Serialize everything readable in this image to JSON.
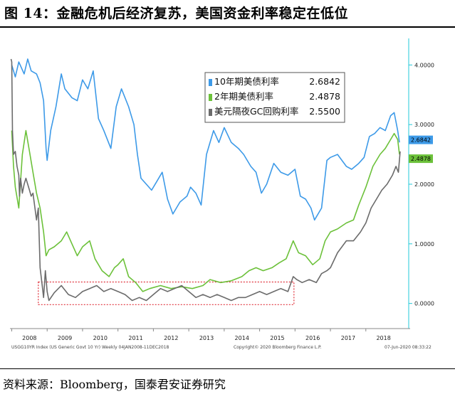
{
  "header": {
    "title": "图 14：金融危机后经济复苏，美国资金利率稳定在低位"
  },
  "footer": {
    "source": "资料来源：Bloomberg，国泰君安证券研究"
  },
  "chart_data": {
    "type": "line",
    "x_tick_labels": [
      "2008",
      "2009",
      "2010",
      "2011",
      "2012",
      "2013",
      "2014",
      "2015",
      "2016",
      "2017",
      "2018"
    ],
    "y_tick_labels": [
      "0.0000",
      "1.0000",
      "2.0000",
      "3.0000",
      "4.0000"
    ],
    "ylim": [
      -0.35,
      4.35
    ],
    "grid": false,
    "legend_position": "top-right",
    "end_labels": [
      "2.6842",
      "2.4878"
    ],
    "footer_left": "USGG10YR Index (US Generic Govt 10 Yr)  Weekly 04JAN2008-11DEC2018",
    "footer_mid": "Copyright© 2020 Bloomberg Finance L.P.",
    "footer_right": "07-Jun-2020 08:33:22",
    "colors": {
      "us10y": "#3d9ae8",
      "us2y": "#6cc13a",
      "gc": "#6b6b6b",
      "highlight": "#e0313b",
      "axis": "#22c8d8"
    },
    "series": [
      {
        "name": "10年期美债利率",
        "value_label": "2.6842",
        "points": [
          [
            2008.0,
            4.0
          ],
          [
            2008.1,
            3.8
          ],
          [
            2008.2,
            4.05
          ],
          [
            2008.35,
            3.85
          ],
          [
            2008.45,
            4.1
          ],
          [
            2008.55,
            3.9
          ],
          [
            2008.7,
            3.85
          ],
          [
            2008.8,
            3.7
          ],
          [
            2008.9,
            3.4
          ],
          [
            2008.97,
            2.6
          ],
          [
            2009.0,
            2.4
          ],
          [
            2009.1,
            2.9
          ],
          [
            2009.25,
            3.3
          ],
          [
            2009.4,
            3.85
          ],
          [
            2009.5,
            3.6
          ],
          [
            2009.7,
            3.45
          ],
          [
            2009.85,
            3.4
          ],
          [
            2010.0,
            3.75
          ],
          [
            2010.15,
            3.6
          ],
          [
            2010.3,
            3.9
          ],
          [
            2010.45,
            3.1
          ],
          [
            2010.6,
            2.9
          ],
          [
            2010.8,
            2.6
          ],
          [
            2010.95,
            3.3
          ],
          [
            2011.1,
            3.6
          ],
          [
            2011.3,
            3.3
          ],
          [
            2011.45,
            3.0
          ],
          [
            2011.55,
            2.5
          ],
          [
            2011.65,
            2.1
          ],
          [
            2011.8,
            2.0
          ],
          [
            2011.95,
            1.9
          ],
          [
            2012.1,
            2.05
          ],
          [
            2012.25,
            2.2
          ],
          [
            2012.4,
            1.75
          ],
          [
            2012.55,
            1.5
          ],
          [
            2012.75,
            1.7
          ],
          [
            2012.95,
            1.8
          ],
          [
            2013.05,
            1.95
          ],
          [
            2013.2,
            1.85
          ],
          [
            2013.35,
            1.65
          ],
          [
            2013.5,
            2.5
          ],
          [
            2013.7,
            2.9
          ],
          [
            2013.85,
            2.7
          ],
          [
            2014.0,
            2.95
          ],
          [
            2014.2,
            2.7
          ],
          [
            2014.4,
            2.6
          ],
          [
            2014.55,
            2.5
          ],
          [
            2014.75,
            2.3
          ],
          [
            2014.9,
            2.2
          ],
          [
            2015.05,
            1.85
          ],
          [
            2015.2,
            2.0
          ],
          [
            2015.4,
            2.35
          ],
          [
            2015.6,
            2.2
          ],
          [
            2015.8,
            2.15
          ],
          [
            2016.0,
            2.25
          ],
          [
            2016.15,
            1.8
          ],
          [
            2016.3,
            1.75
          ],
          [
            2016.45,
            1.6
          ],
          [
            2016.55,
            1.4
          ],
          [
            2016.75,
            1.6
          ],
          [
            2016.9,
            2.4
          ],
          [
            2017.0,
            2.45
          ],
          [
            2017.2,
            2.5
          ],
          [
            2017.45,
            2.3
          ],
          [
            2017.6,
            2.25
          ],
          [
            2017.8,
            2.35
          ],
          [
            2017.95,
            2.45
          ],
          [
            2018.1,
            2.8
          ],
          [
            2018.25,
            2.85
          ],
          [
            2018.4,
            2.95
          ],
          [
            2018.55,
            2.9
          ],
          [
            2018.7,
            3.15
          ],
          [
            2018.8,
            3.2
          ],
          [
            2018.9,
            2.9
          ],
          [
            2018.95,
            2.7
          ]
        ]
      },
      {
        "name": "2年期美债利率",
        "value_label": "2.4878",
        "points": [
          [
            2008.0,
            2.9
          ],
          [
            2008.05,
            2.3
          ],
          [
            2008.1,
            1.95
          ],
          [
            2008.2,
            1.6
          ],
          [
            2008.3,
            2.5
          ],
          [
            2008.4,
            2.9
          ],
          [
            2008.5,
            2.55
          ],
          [
            2008.6,
            2.2
          ],
          [
            2008.7,
            1.85
          ],
          [
            2008.8,
            1.6
          ],
          [
            2008.9,
            1.2
          ],
          [
            2008.97,
            0.8
          ],
          [
            2009.05,
            0.9
          ],
          [
            2009.2,
            0.95
          ],
          [
            2009.4,
            1.05
          ],
          [
            2009.55,
            1.2
          ],
          [
            2009.7,
            1.0
          ],
          [
            2009.85,
            0.8
          ],
          [
            2010.0,
            0.95
          ],
          [
            2010.2,
            1.05
          ],
          [
            2010.35,
            0.75
          ],
          [
            2010.55,
            0.55
          ],
          [
            2010.75,
            0.45
          ],
          [
            2010.9,
            0.6
          ],
          [
            2011.0,
            0.65
          ],
          [
            2011.15,
            0.75
          ],
          [
            2011.3,
            0.45
          ],
          [
            2011.5,
            0.35
          ],
          [
            2011.7,
            0.2
          ],
          [
            2011.9,
            0.25
          ],
          [
            2012.2,
            0.3
          ],
          [
            2012.5,
            0.25
          ],
          [
            2012.8,
            0.28
          ],
          [
            2013.1,
            0.25
          ],
          [
            2013.4,
            0.3
          ],
          [
            2013.6,
            0.4
          ],
          [
            2013.9,
            0.35
          ],
          [
            2014.2,
            0.38
          ],
          [
            2014.5,
            0.45
          ],
          [
            2014.7,
            0.55
          ],
          [
            2014.9,
            0.6
          ],
          [
            2015.1,
            0.55
          ],
          [
            2015.35,
            0.6
          ],
          [
            2015.55,
            0.68
          ],
          [
            2015.75,
            0.75
          ],
          [
            2015.95,
            1.05
          ],
          [
            2016.1,
            0.85
          ],
          [
            2016.3,
            0.8
          ],
          [
            2016.5,
            0.65
          ],
          [
            2016.7,
            0.75
          ],
          [
            2016.85,
            1.05
          ],
          [
            2017.0,
            1.2
          ],
          [
            2017.2,
            1.25
          ],
          [
            2017.45,
            1.35
          ],
          [
            2017.65,
            1.4
          ],
          [
            2017.8,
            1.65
          ],
          [
            2018.0,
            1.95
          ],
          [
            2018.2,
            2.3
          ],
          [
            2018.4,
            2.5
          ],
          [
            2018.55,
            2.6
          ],
          [
            2018.7,
            2.75
          ],
          [
            2018.8,
            2.85
          ],
          [
            2018.9,
            2.75
          ],
          [
            2018.95,
            2.5
          ]
        ]
      },
      {
        "name": "美元隔夜GC回购利率",
        "value_label": "2.5500",
        "points": [
          [
            2007.98,
            4.1
          ],
          [
            2008.0,
            4.05
          ],
          [
            2008.02,
            2.9
          ],
          [
            2008.05,
            2.5
          ],
          [
            2008.1,
            2.55
          ],
          [
            2008.15,
            2.3
          ],
          [
            2008.2,
            2.15
          ],
          [
            2008.22,
            1.8
          ],
          [
            2008.25,
            2.1
          ],
          [
            2008.3,
            1.85
          ],
          [
            2008.35,
            2.0
          ],
          [
            2008.4,
            2.1
          ],
          [
            2008.45,
            2.0
          ],
          [
            2008.5,
            1.9
          ],
          [
            2008.55,
            1.8
          ],
          [
            2008.6,
            1.85
          ],
          [
            2008.7,
            1.4
          ],
          [
            2008.75,
            1.6
          ],
          [
            2008.8,
            0.6
          ],
          [
            2008.85,
            0.35
          ],
          [
            2008.9,
            0.1
          ],
          [
            2008.95,
            0.55
          ],
          [
            2009.0,
            0.2
          ],
          [
            2009.05,
            0.05
          ],
          [
            2009.2,
            0.18
          ],
          [
            2009.4,
            0.3
          ],
          [
            2009.6,
            0.15
          ],
          [
            2009.8,
            0.1
          ],
          [
            2010.0,
            0.2
          ],
          [
            2010.2,
            0.25
          ],
          [
            2010.4,
            0.3
          ],
          [
            2010.6,
            0.2
          ],
          [
            2010.8,
            0.25
          ],
          [
            2011.0,
            0.2
          ],
          [
            2011.2,
            0.15
          ],
          [
            2011.4,
            0.05
          ],
          [
            2011.6,
            0.1
          ],
          [
            2011.8,
            0.05
          ],
          [
            2012.0,
            0.15
          ],
          [
            2012.2,
            0.25
          ],
          [
            2012.4,
            0.2
          ],
          [
            2012.6,
            0.25
          ],
          [
            2012.8,
            0.3
          ],
          [
            2013.0,
            0.2
          ],
          [
            2013.2,
            0.1
          ],
          [
            2013.4,
            0.15
          ],
          [
            2013.6,
            0.1
          ],
          [
            2013.8,
            0.15
          ],
          [
            2014.0,
            0.1
          ],
          [
            2014.2,
            0.05
          ],
          [
            2014.4,
            0.1
          ],
          [
            2014.6,
            0.1
          ],
          [
            2014.8,
            0.15
          ],
          [
            2015.0,
            0.2
          ],
          [
            2015.2,
            0.15
          ],
          [
            2015.4,
            0.2
          ],
          [
            2015.6,
            0.25
          ],
          [
            2015.8,
            0.2
          ],
          [
            2015.95,
            0.45
          ],
          [
            2016.05,
            0.4
          ],
          [
            2016.2,
            0.35
          ],
          [
            2016.4,
            0.4
          ],
          [
            2016.6,
            0.35
          ],
          [
            2016.75,
            0.5
          ],
          [
            2016.9,
            0.55
          ],
          [
            2017.0,
            0.6
          ],
          [
            2017.2,
            0.85
          ],
          [
            2017.45,
            1.05
          ],
          [
            2017.65,
            1.05
          ],
          [
            2017.85,
            1.2
          ],
          [
            2018.0,
            1.35
          ],
          [
            2018.15,
            1.6
          ],
          [
            2018.3,
            1.75
          ],
          [
            2018.45,
            1.9
          ],
          [
            2018.6,
            2.0
          ],
          [
            2018.75,
            2.15
          ],
          [
            2018.85,
            2.3
          ],
          [
            2018.92,
            2.2
          ],
          [
            2018.97,
            2.55
          ]
        ]
      }
    ]
  }
}
